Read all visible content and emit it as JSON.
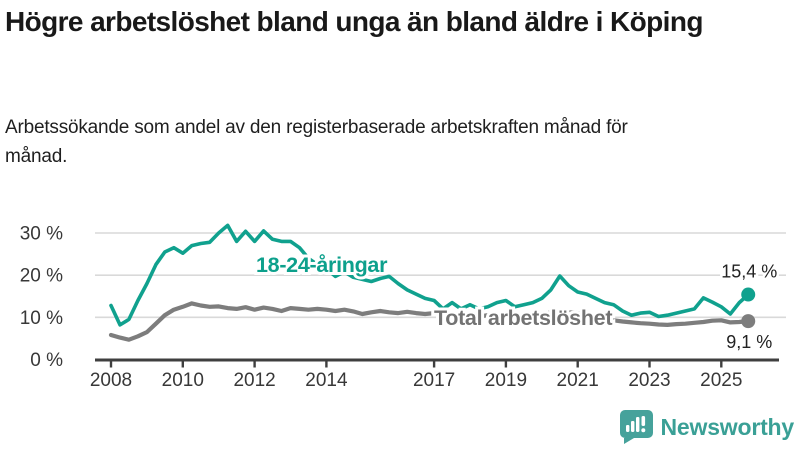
{
  "header": {
    "title": "Högre arbetslöshet bland unga än bland äldre i Köping",
    "subtitle": "Arbetssökande som andel av den registerbaserade arbetskraften månad för månad."
  },
  "chart_data": {
    "type": "line",
    "title": "Högre arbetslöshet bland unga än bland äldre i Köping",
    "subtitle": "Arbetssökande som andel av den registerbaserade arbetskraften månad för månad.",
    "xlabel": "",
    "ylabel": "",
    "grid": "horizontal-gridlines",
    "legend_position": "inline-labels-on-lines",
    "ylim": [
      0,
      33
    ],
    "xlim": [
      2007.9,
      2026.2
    ],
    "yticks": [
      {
        "value": 0,
        "label": "0 %"
      },
      {
        "value": 10,
        "label": "10 %"
      },
      {
        "value": 20,
        "label": "20 %"
      },
      {
        "value": 30,
        "label": "30 %"
      }
    ],
    "xticks": [
      2008,
      2010,
      2012,
      2014,
      2017,
      2019,
      2021,
      2023,
      2025
    ],
    "x": [
      2008,
      2008.25,
      2008.5,
      2008.75,
      2009,
      2009.25,
      2009.5,
      2009.75,
      2010,
      2010.25,
      2010.5,
      2010.75,
      2011,
      2011.25,
      2011.5,
      2011.75,
      2012,
      2012.25,
      2012.5,
      2012.75,
      2013,
      2013.25,
      2013.5,
      2013.75,
      2014,
      2014.25,
      2014.5,
      2014.75,
      2015,
      2015.25,
      2015.5,
      2015.75,
      2016,
      2016.25,
      2016.5,
      2016.75,
      2017,
      2017.25,
      2017.5,
      2017.75,
      2018,
      2018.25,
      2018.5,
      2018.75,
      2019,
      2019.25,
      2019.5,
      2019.75,
      2020,
      2020.25,
      2020.5,
      2020.75,
      2021,
      2021.25,
      2021.5,
      2021.75,
      2022,
      2022.25,
      2022.5,
      2022.75,
      2023,
      2023.25,
      2023.5,
      2023.75,
      2024,
      2024.25,
      2024.5,
      2024.75,
      2025,
      2025.25,
      2025.5,
      2025.75
    ],
    "series": [
      {
        "name": "18-24-åringar",
        "color": "#10a18e",
        "label_color": "#0da08c",
        "end_label": "15,4 %",
        "end_value": 15.4,
        "values": [
          12.8,
          8.2,
          9.5,
          14.0,
          18.0,
          22.5,
          25.5,
          26.5,
          25.2,
          27.0,
          27.5,
          27.8,
          30.0,
          31.8,
          28.0,
          30.4,
          28.0,
          30.5,
          28.5,
          28.0,
          28.0,
          26.5,
          24.0,
          22.5,
          21.5,
          19.7,
          20.8,
          19.5,
          19.0,
          18.5,
          19.2,
          19.7,
          18.0,
          16.5,
          15.5,
          14.5,
          14.0,
          12.0,
          13.5,
          12.0,
          13.0,
          12.0,
          12.5,
          13.5,
          14.0,
          12.5,
          13.0,
          13.5,
          14.5,
          16.5,
          19.8,
          17.5,
          16.0,
          15.5,
          14.5,
          13.5,
          13.0,
          11.5,
          10.5,
          11.0,
          11.2,
          10.2,
          10.5,
          11.0,
          11.5,
          12.0,
          14.6,
          13.6,
          12.5,
          10.8,
          13.5,
          15.4
        ]
      },
      {
        "name": "Total arbetslöshet",
        "color": "#7d7d7d",
        "label_color": "#737373",
        "end_label": "9,1 %",
        "end_value": 9.1,
        "values": [
          5.8,
          5.2,
          4.7,
          5.5,
          6.5,
          8.5,
          10.5,
          11.8,
          12.5,
          13.3,
          12.8,
          12.5,
          12.6,
          12.2,
          12.0,
          12.4,
          11.8,
          12.3,
          12.0,
          11.5,
          12.2,
          12.0,
          11.8,
          12.0,
          11.8,
          11.5,
          11.8,
          11.4,
          10.8,
          11.2,
          11.5,
          11.2,
          11.0,
          11.3,
          11.0,
          10.8,
          11.0,
          10.8,
          11.0,
          10.8,
          10.5,
          10.2,
          10.5,
          10.2,
          10.0,
          9.8,
          10.0,
          10.2,
          10.5,
          11.2,
          11.6,
          11.2,
          11.0,
          10.8,
          10.3,
          9.8,
          9.3,
          9.0,
          8.8,
          8.6,
          8.5,
          8.3,
          8.2,
          8.4,
          8.5,
          8.7,
          8.9,
          9.2,
          9.3,
          8.8,
          8.9,
          9.1
        ]
      }
    ]
  },
  "colors": {
    "accent_teal": "#10a18e",
    "line_gray": "#7d7d7d",
    "axis": "#3f3f3f",
    "gridline": "#d9d9d9",
    "tick_text": "#383838",
    "brand_teal": "#3aa096"
  },
  "footer": {
    "brand": "Newsworthy"
  }
}
